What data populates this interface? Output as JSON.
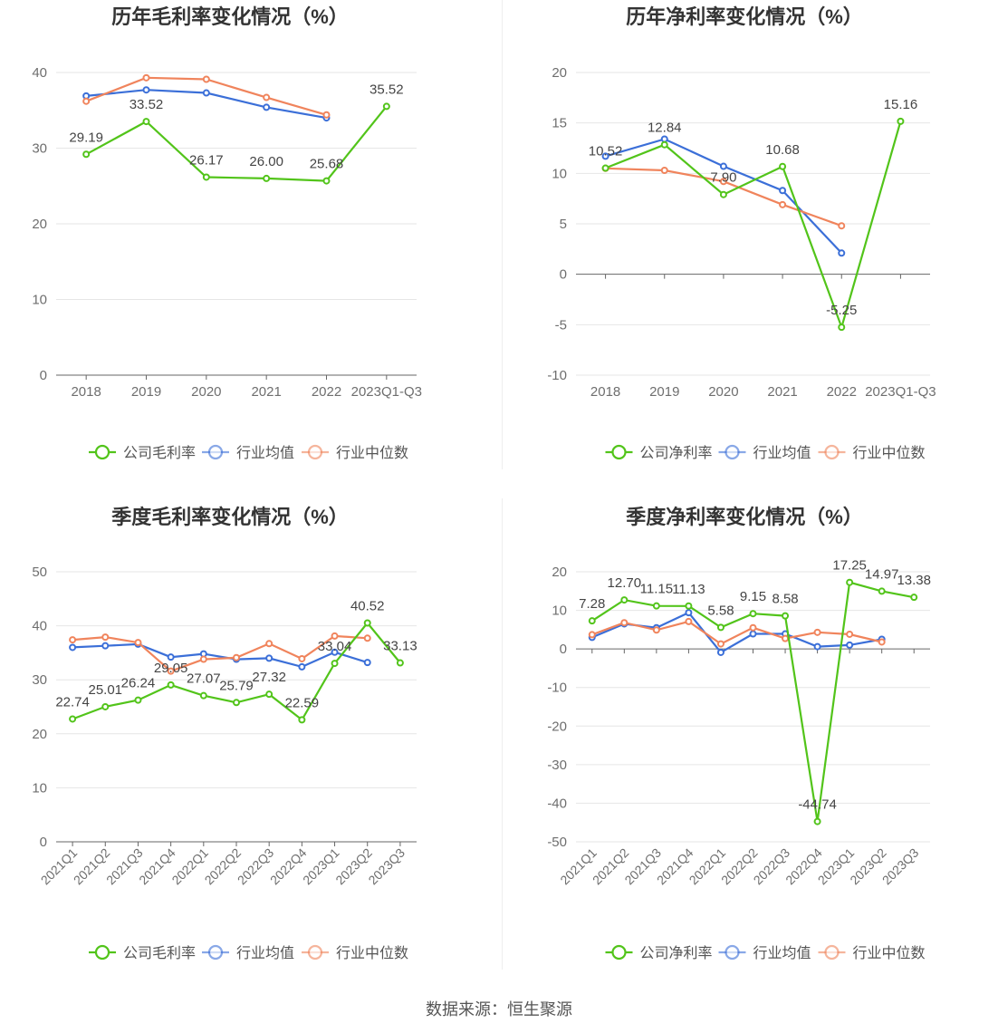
{
  "footer": {
    "source": "数据来源：恒生聚源"
  },
  "colors": {
    "company": "#52c41a",
    "average": "#3b6fd8",
    "median": "#f0845c",
    "grid": "#e6e6e6",
    "axis": "#666666"
  },
  "chart_data": [
    {
      "type": "line",
      "title": "历年毛利率变化情况（%）",
      "categories": [
        "2018",
        "2019",
        "2020",
        "2021",
        "2022",
        "2023Q1-Q3"
      ],
      "ylim": [
        0,
        40
      ],
      "yticks": [
        0,
        10,
        20,
        30,
        40
      ],
      "rotate_labels": false,
      "legend_position": "bottom",
      "series": [
        {
          "name": "公司毛利率",
          "role": "company",
          "values": [
            29.19,
            33.52,
            26.17,
            26.0,
            25.68,
            35.52
          ],
          "labels": [
            "29.19",
            "33.52",
            "26.17",
            "26.00",
            "25.68",
            "35.52"
          ]
        },
        {
          "name": "行业均值",
          "role": "average",
          "values": [
            36.9,
            37.7,
            37.3,
            35.4,
            34.0,
            null
          ]
        },
        {
          "name": "行业中位数",
          "role": "median",
          "values": [
            36.2,
            39.3,
            39.1,
            36.7,
            34.4,
            null
          ]
        }
      ]
    },
    {
      "type": "line",
      "title": "历年净利率变化情况（%）",
      "categories": [
        "2018",
        "2019",
        "2020",
        "2021",
        "2022",
        "2023Q1-Q3"
      ],
      "ylim": [
        -10,
        20
      ],
      "yticks": [
        -10,
        -5,
        0,
        5,
        10,
        15,
        20
      ],
      "rotate_labels": false,
      "legend_position": "bottom",
      "series": [
        {
          "name": "公司净利率",
          "role": "company",
          "values": [
            10.52,
            12.84,
            7.9,
            10.68,
            -5.25,
            15.16
          ],
          "labels": [
            "10.52",
            "12.84",
            "7.90",
            "10.68",
            "-5.25",
            "15.16"
          ]
        },
        {
          "name": "行业均值",
          "role": "average",
          "values": [
            11.7,
            13.4,
            10.7,
            8.3,
            2.1,
            null
          ]
        },
        {
          "name": "行业中位数",
          "role": "median",
          "values": [
            10.5,
            10.3,
            9.2,
            6.9,
            4.8,
            null
          ]
        }
      ]
    },
    {
      "type": "line",
      "title": "季度毛利率变化情况（%）",
      "categories": [
        "2021Q1",
        "2021Q2",
        "2021Q3",
        "2021Q4",
        "2022Q1",
        "2022Q2",
        "2022Q3",
        "2022Q4",
        "2023Q1",
        "2023Q2",
        "2023Q3"
      ],
      "ylim": [
        0,
        50
      ],
      "yticks": [
        0,
        10,
        20,
        30,
        40,
        50
      ],
      "rotate_labels": true,
      "legend_position": "bottom",
      "series": [
        {
          "name": "公司毛利率",
          "role": "company",
          "values": [
            22.74,
            25.01,
            26.24,
            29.05,
            27.07,
            25.79,
            27.32,
            22.59,
            33.04,
            40.52,
            33.13
          ],
          "labels": [
            "22.74",
            "25.01",
            "26.24",
            "29.05",
            "27.07",
            "25.79",
            "27.32",
            "22.59",
            "33.04",
            "40.52",
            "33.13"
          ]
        },
        {
          "name": "行业均值",
          "role": "average",
          "values": [
            36.0,
            36.3,
            36.6,
            34.2,
            34.8,
            33.8,
            34.0,
            32.4,
            35.1,
            33.2,
            null
          ]
        },
        {
          "name": "行业中位数",
          "role": "median",
          "values": [
            37.4,
            37.9,
            36.9,
            31.6,
            33.8,
            34.1,
            36.7,
            33.9,
            38.1,
            37.7,
            null
          ]
        }
      ]
    },
    {
      "type": "line",
      "title": "季度净利率变化情况（%）",
      "categories": [
        "2021Q1",
        "2021Q2",
        "2021Q3",
        "2021Q4",
        "2022Q1",
        "2022Q2",
        "2022Q3",
        "2022Q4",
        "2023Q1",
        "2023Q2",
        "2023Q3"
      ],
      "ylim": [
        -50,
        20
      ],
      "yticks": [
        -50,
        -40,
        -30,
        -20,
        -10,
        0,
        10,
        20
      ],
      "rotate_labels": true,
      "legend_position": "bottom",
      "series": [
        {
          "name": "公司净利率",
          "role": "company",
          "values": [
            7.28,
            12.7,
            11.15,
            11.13,
            5.58,
            9.15,
            8.58,
            -44.74,
            17.25,
            14.97,
            13.38
          ],
          "labels": [
            "7.28",
            "12.70",
            "11.15",
            "11.13",
            "5.58",
            "9.15",
            "8.58",
            "-44.74",
            "17.25",
            "14.97",
            "13.38"
          ]
        },
        {
          "name": "行业均值",
          "role": "average",
          "values": [
            3.0,
            6.5,
            5.5,
            9.4,
            -0.9,
            3.9,
            3.9,
            0.6,
            1.0,
            2.5,
            null
          ]
        },
        {
          "name": "行业中位数",
          "role": "median",
          "values": [
            3.7,
            6.8,
            4.9,
            7.1,
            1.3,
            5.5,
            2.7,
            4.3,
            3.8,
            1.8,
            null
          ]
        }
      ]
    }
  ]
}
